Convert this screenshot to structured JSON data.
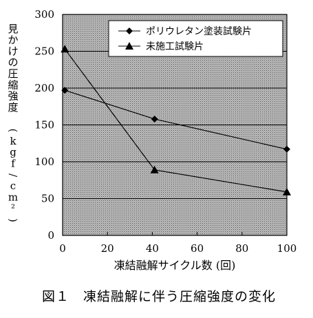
{
  "chart_data": {
    "type": "line",
    "title": "",
    "xlabel": "凍結融解サイクル数 (回)",
    "ylabel": "見かけの圧縮強度 (kgf/cm²)",
    "xlim": [
      0,
      100
    ],
    "ylim": [
      0,
      300
    ],
    "x_ticks": [
      0,
      20,
      40,
      60,
      80,
      100
    ],
    "y_ticks": [
      0,
      50,
      100,
      150,
      200,
      250,
      300
    ],
    "grid": "horizontal",
    "legend_position": "top-right",
    "series": [
      {
        "name": "ポリウレタン塗装試験片",
        "marker": "diamond",
        "color": "#000000",
        "x": [
          1,
          41,
          100
        ],
        "y": [
          197,
          158,
          117
        ]
      },
      {
        "name": "未施工試験片",
        "marker": "triangle",
        "color": "#000000",
        "x": [
          1,
          41,
          100
        ],
        "y": [
          253,
          89,
          59
        ]
      }
    ]
  },
  "caption": "図１　凍結融解に伴う圧縮強度の変化",
  "colors": {
    "plot_background": "#a8a8a8",
    "gridline": "#000000",
    "line": "#000000"
  }
}
